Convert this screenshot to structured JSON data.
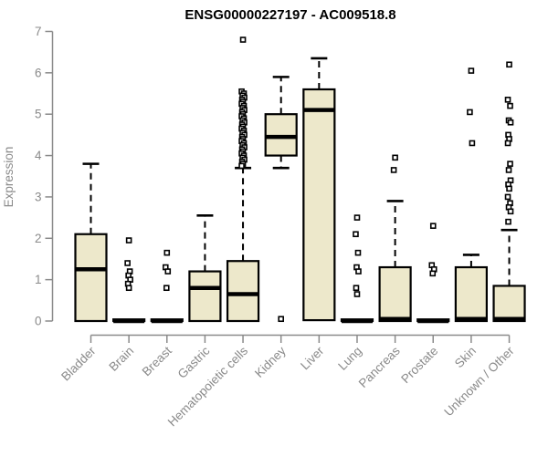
{
  "chart_data": {
    "type": "boxplot",
    "title": "ENSG00000227197 - AC009518.8",
    "ylabel": "Expression",
    "xlabel": "",
    "ylim": [
      0,
      7
    ],
    "yticks": [
      0,
      1,
      2,
      3,
      4,
      5,
      6,
      7
    ],
    "grid": false,
    "legend": "none",
    "categories": [
      "Bladder",
      "Brain",
      "Breast",
      "Gastric",
      "Hematopoietic cells",
      "Kidney",
      "Liver",
      "Lung",
      "Pancreas",
      "Prostate",
      "Skin",
      "Unknown / Other"
    ],
    "series": [
      {
        "category": "Bladder",
        "whisker_low": 0,
        "q1": 0,
        "median": 1.25,
        "q3": 2.1,
        "whisker_high": 3.8,
        "outliers": []
      },
      {
        "category": "Brain",
        "whisker_low": 0,
        "q1": 0,
        "median": 0,
        "q3": 0.04,
        "whisker_high": 0.04,
        "outliers": [
          1.95,
          1.4,
          1.2,
          1.1,
          1.0,
          0.9,
          0.8
        ]
      },
      {
        "category": "Breast",
        "whisker_low": 0,
        "q1": 0,
        "median": 0,
        "q3": 0.04,
        "whisker_high": 0.04,
        "outliers": [
          1.65,
          1.3,
          1.2,
          0.8
        ]
      },
      {
        "category": "Gastric",
        "whisker_low": 0,
        "q1": 0,
        "median": 0.8,
        "q3": 1.2,
        "whisker_high": 2.55,
        "outliers": []
      },
      {
        "category": "Hematopoietic cells",
        "whisker_low": 0,
        "q1": 0,
        "median": 0.65,
        "q3": 1.45,
        "whisker_high": 3.7,
        "outliers": [
          6.8,
          5.55,
          5.5,
          5.45,
          5.4,
          5.35,
          5.3,
          5.25,
          5.2,
          5.15,
          5.1,
          5.05,
          5.0,
          4.95,
          4.9,
          4.85,
          4.8,
          4.75,
          4.7,
          4.65,
          4.6,
          4.55,
          4.5,
          4.45,
          4.4,
          4.35,
          4.3,
          4.25,
          4.2,
          4.15,
          4.1,
          4.05,
          4.0,
          3.95,
          3.9,
          3.85,
          3.8,
          3.75
        ]
      },
      {
        "category": "Kidney",
        "whisker_low": 3.7,
        "q1": 4.0,
        "median": 4.45,
        "q3": 5.0,
        "whisker_high": 5.9,
        "outliers": [
          0.05
        ]
      },
      {
        "category": "Liver",
        "whisker_low": 0,
        "q1": 0.02,
        "median": 5.1,
        "q3": 5.6,
        "whisker_high": 6.35,
        "outliers": []
      },
      {
        "category": "Lung",
        "whisker_low": 0,
        "q1": 0,
        "median": 0,
        "q3": 0.04,
        "whisker_high": 0.04,
        "outliers": [
          2.5,
          2.1,
          1.65,
          1.3,
          1.2,
          0.8,
          0.65
        ]
      },
      {
        "category": "Pancreas",
        "whisker_low": 0,
        "q1": 0,
        "median": 0.05,
        "q3": 1.3,
        "whisker_high": 2.9,
        "outliers": [
          3.95,
          3.65
        ]
      },
      {
        "category": "Prostate",
        "whisker_low": 0,
        "q1": 0,
        "median": 0,
        "q3": 0.04,
        "whisker_high": 0.04,
        "outliers": [
          2.3,
          1.35,
          1.25,
          1.15
        ]
      },
      {
        "category": "Skin",
        "whisker_low": 0,
        "q1": 0,
        "median": 0.05,
        "q3": 1.3,
        "whisker_high": 1.6,
        "outliers": [
          6.05,
          5.05,
          4.3
        ]
      },
      {
        "category": "Unknown / Other",
        "whisker_low": 0,
        "q1": 0,
        "median": 0.05,
        "q3": 0.85,
        "whisker_high": 2.2,
        "outliers": [
          6.2,
          5.35,
          5.2,
          4.85,
          4.8,
          4.5,
          4.4,
          4.3,
          3.8,
          3.65,
          3.4,
          3.3,
          3.2,
          3.0,
          2.85,
          2.75,
          2.65,
          2.4
        ]
      }
    ],
    "colors": {
      "box_fill": "#ede8cb",
      "box_border": "#000000",
      "median": "#000000",
      "whisker": "#000000",
      "outlier_stroke": "#000000",
      "outlier_fill": "#ffffff",
      "axis": "#8a8a8a",
      "tick_text": "#8a8a8a",
      "title_text": "#000000",
      "background": "#ffffff"
    }
  }
}
